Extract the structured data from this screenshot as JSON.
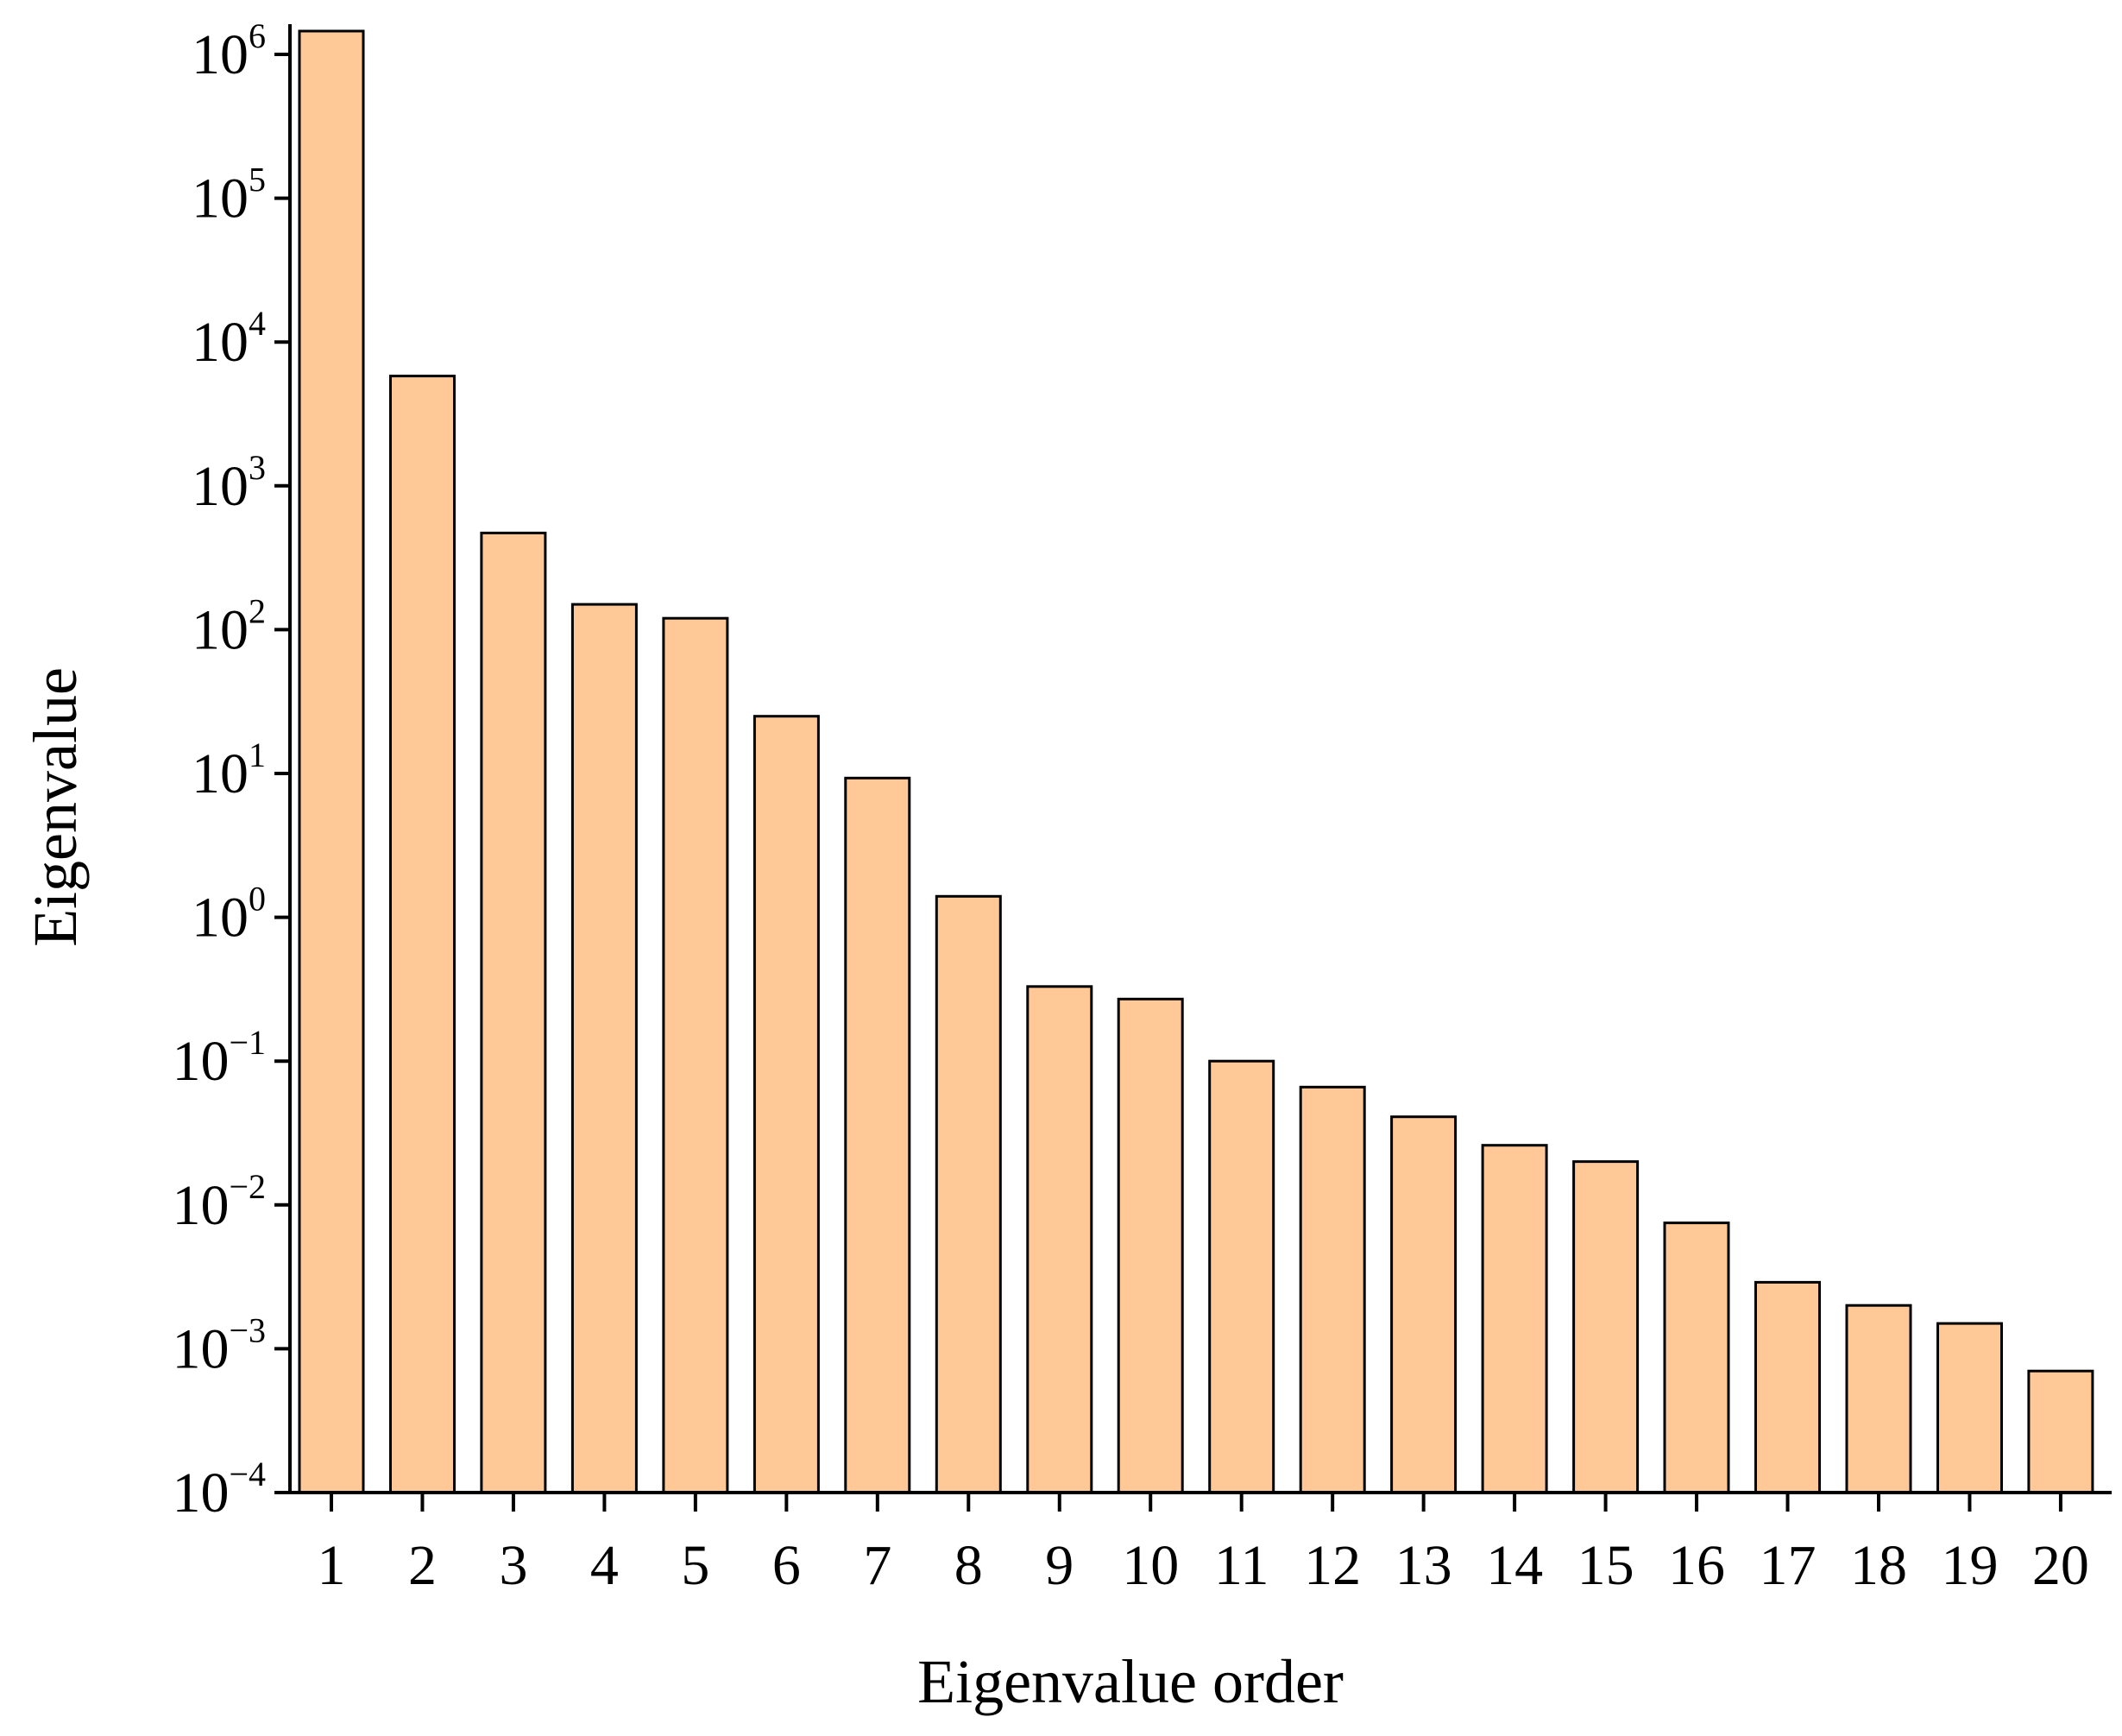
{
  "chart_data": {
    "type": "bar",
    "title": "",
    "xlabel": "Eigenvalue order",
    "ylabel": "Eigenvalue",
    "yscale": "log",
    "ylim": [
      0.0001,
      1500000
    ],
    "grid": false,
    "legend": "none",
    "categories": [
      "1",
      "2",
      "3",
      "4",
      "5",
      "6",
      "7",
      "8",
      "9",
      "10",
      "11",
      "12",
      "13",
      "14",
      "15",
      "16",
      "17",
      "18",
      "19",
      "20"
    ],
    "values": [
      1500000,
      5800,
      470,
      150,
      120,
      25,
      9.3,
      1.4,
      0.33,
      0.27,
      0.1,
      0.066,
      0.041,
      0.026,
      0.02,
      0.0075,
      0.0029,
      0.002,
      0.0015,
      0.0007
    ],
    "y_ticks": [
      {
        "base": "10",
        "exp": "−4"
      },
      {
        "base": "10",
        "exp": "−3"
      },
      {
        "base": "10",
        "exp": "−2"
      },
      {
        "base": "10",
        "exp": "−1"
      },
      {
        "base": "10",
        "exp": "0"
      },
      {
        "base": "10",
        "exp": "1"
      },
      {
        "base": "10",
        "exp": "2"
      },
      {
        "base": "10",
        "exp": "3"
      },
      {
        "base": "10",
        "exp": "4"
      },
      {
        "base": "10",
        "exp": "5"
      },
      {
        "base": "10",
        "exp": "6"
      }
    ],
    "colors": {
      "bar_fill": "#FFC896",
      "bar_stroke": "#000000",
      "axis": "#000000"
    }
  }
}
